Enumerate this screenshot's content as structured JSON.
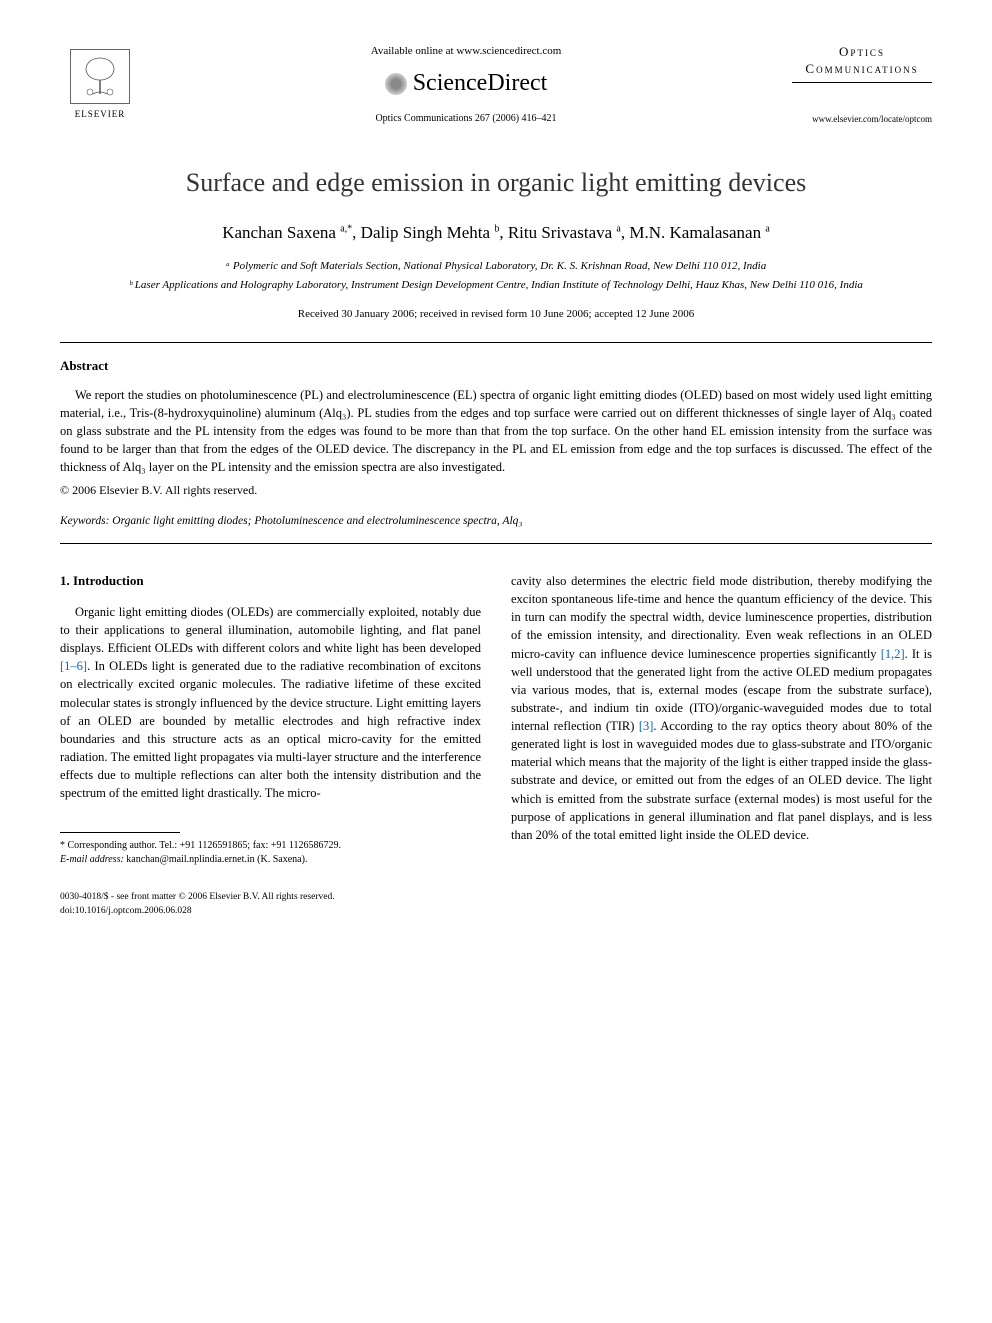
{
  "header": {
    "publisher": "ELSEVIER",
    "available_text": "Available online at www.sciencedirect.com",
    "platform": "ScienceDirect",
    "journal_ref": "Optics Communications 267 (2006) 416–421",
    "journal_name_line1": "Optics",
    "journal_name_line2": "Communications",
    "journal_url": "www.elsevier.com/locate/optcom"
  },
  "article": {
    "title": "Surface and edge emission in organic light emitting devices",
    "authors_html": "Kanchan Saxena <sup>a,*</sup>, Dalip Singh Mehta <sup>b</sup>, Ritu Srivastava <sup>a</sup>, M.N. Kamalasanan <sup>a</sup>",
    "affiliations": [
      "ᵃ Polymeric and Soft Materials Section, National Physical Laboratory, Dr. K. S. Krishnan Road, New Delhi 110 012, India",
      "ᵇ Laser Applications and Holography Laboratory, Instrument Design Development Centre, Indian Institute of Technology Delhi, Hauz Khas, New Delhi 110 016, India"
    ],
    "dates": "Received 30 January 2006; received in revised form 10 June 2006; accepted 12 June 2006"
  },
  "abstract": {
    "heading": "Abstract",
    "text": "We report the studies on photoluminescence (PL) and electroluminescence (EL) spectra of organic light emitting diodes (OLED) based on most widely used light emitting material, i.e., Tris-(8-hydroxyquinoline) aluminum (Alq₃). PL studies from the edges and top surface were carried out on different thicknesses of single layer of Alq₃ coated on glass substrate and the PL intensity from the edges was found to be more than that from the top surface. On the other hand EL emission intensity from the surface was found to be larger than that from the edges of the OLED device. The discrepancy in the PL and EL emission from edge and the top surfaces is discussed. The effect of the thickness of Alq₃ layer on the PL intensity and the emission spectra are also investigated.",
    "copyright": "© 2006 Elsevier B.V. All rights reserved."
  },
  "keywords": {
    "label": "Keywords:",
    "text": "Organic light emitting diodes; Photoluminescence and electroluminescence spectra, Alq₃"
  },
  "introduction": {
    "heading": "1. Introduction",
    "col1": "Organic light emitting diodes (OLEDs) are commercially exploited, notably due to their applications to general illumination, automobile lighting, and flat panel displays. Efficient OLEDs with different colors and white light has been developed [1–6]. In OLEDs light is generated due to the radiative recombination of excitons on electrically excited organic molecules. The radiative lifetime of these excited molecular states is strongly influenced by the device structure. Light emitting layers of an OLED are bounded by metallic electrodes and high refractive index boundaries and this structure acts as an optical micro-cavity for the emitted radiation. The emitted light propagates via multi-layer structure and the interference effects due to multiple reflections can alter both the intensity distribution and the spectrum of the emitted light drastically. The micro-",
    "col2": "cavity also determines the electric field mode distribution, thereby modifying the exciton spontaneous life-time and hence the quantum efficiency of the device. This in turn can modify the spectral width, device luminescence properties, distribution of the emission intensity, and directionality. Even weak reflections in an OLED micro-cavity can influence device luminescence properties significantly [1,2]. It is well understood that the generated light from the active OLED medium propagates via various modes, that is, external modes (escape from the substrate surface), substrate-, and indium tin oxide (ITO)/organic-waveguided modes due to total internal reflection (TIR) [3]. According to the ray optics theory about 80% of the generated light is lost in waveguided modes due to glass-substrate and ITO/organic material which means that the majority of the light is either trapped inside the glass-substrate and device, or emitted out from the edges of an OLED device. The light which is emitted from the substrate surface (external modes) is most useful for the purpose of applications in general illumination and flat panel displays, and is less than 20% of the total emitted light inside the OLED device.",
    "ref_1_6": "[1–6]",
    "ref_1_2": "[1,2]",
    "ref_3": "[3]"
  },
  "footnote": {
    "corresponding": "* Corresponding author. Tel.: +91 1126591865; fax: +91 1126586729.",
    "email_label": "E-mail address:",
    "email": "kanchan@mail.nplindia.ernet.in",
    "email_name": "(K. Saxena)."
  },
  "footer": {
    "line1": "0030-4018/$ - see front matter © 2006 Elsevier B.V. All rights reserved.",
    "line2": "doi:10.1016/j.optcom.2006.06.028"
  },
  "colors": {
    "text": "#000000",
    "link": "#0066cc",
    "background": "#ffffff"
  }
}
